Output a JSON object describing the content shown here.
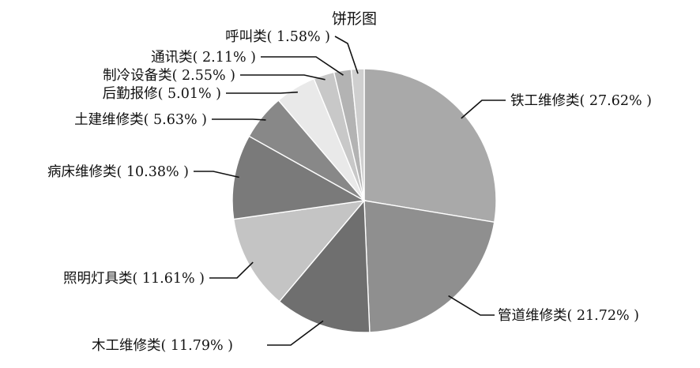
{
  "chart_data": {
    "type": "pie",
    "title": "饼形图",
    "unit": "%",
    "slices": [
      {
        "label": "铁工维修类",
        "value": 27.62,
        "display": "铁工维修类( 27.62% )",
        "color": "#a9a9a9"
      },
      {
        "label": "管道维修类",
        "value": 21.72,
        "display": "管道维修类( 21.72% )",
        "color": "#8f8f8f"
      },
      {
        "label": "木工维修类",
        "value": 11.79,
        "display": "木工维修类( 11.79% )",
        "color": "#6f6f6f"
      },
      {
        "label": "照明灯具类",
        "value": 11.61,
        "display": "照明灯具类( 11.61% )",
        "color": "#c4c4c4"
      },
      {
        "label": "病床维修类",
        "value": 10.38,
        "display": "病床维修类( 10.38% )",
        "color": "#7a7a7a"
      },
      {
        "label": "土建维修类",
        "value": 5.63,
        "display": "土建维修类( 5.63% )",
        "color": "#888888"
      },
      {
        "label": "后勤报修",
        "value": 5.01,
        "display": "后勤报修( 5.01% )",
        "color": "#e9e9e9"
      },
      {
        "label": "制冷设备类",
        "value": 2.55,
        "display": "制冷设备类( 2.55% )",
        "color": "#c8c8c8"
      },
      {
        "label": "通讯类",
        "value": 2.11,
        "display": "通讯类( 2.11% )",
        "color": "#b3b3b3"
      },
      {
        "label": "呼叫类",
        "value": 1.58,
        "display": "呼叫类( 1.58% )",
        "color": "#cfcfcf"
      }
    ],
    "start": "12 o'clock",
    "direction": "clockwise",
    "legend": "none",
    "label_style": "leader lines"
  }
}
